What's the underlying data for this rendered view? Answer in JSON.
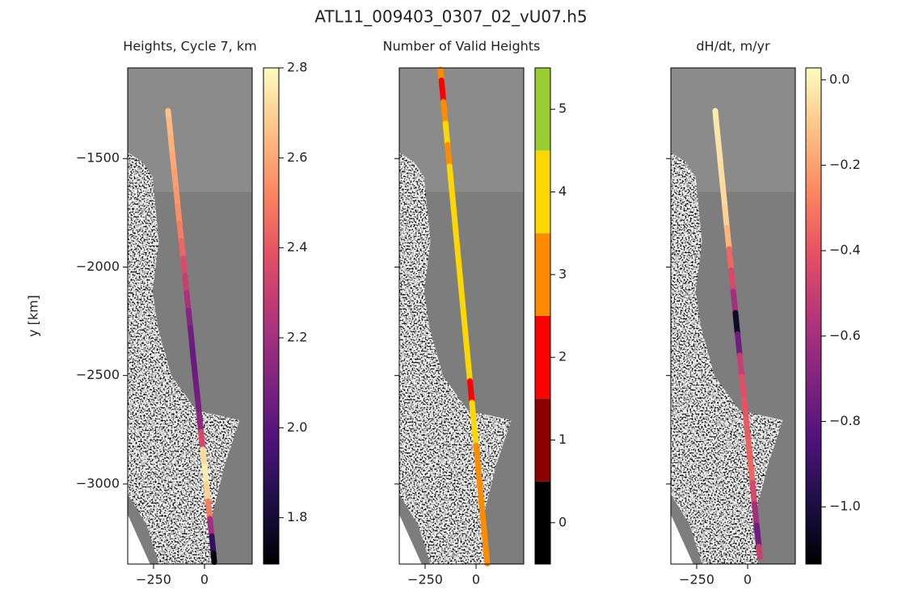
{
  "title": "ATL11_009403_0307_02_vU07.h5",
  "chart_data": [
    {
      "type": "scatter",
      "title": "Heights, Cycle 7, km",
      "ylabel": "y [km]",
      "ytick_labels": true,
      "x": [
        -179,
        -170,
        -162,
        -153,
        -144,
        -135,
        -127,
        -118,
        -109,
        -100,
        -92,
        -83,
        -74,
        -65,
        -57,
        -48,
        -39,
        -30,
        -22,
        -13,
        -4,
        5,
        13,
        22,
        31,
        40,
        48
      ],
      "y": [
        -1280,
        -1360,
        -1440,
        -1520,
        -1600,
        -1680,
        -1760,
        -1840,
        -1920,
        -2000,
        -2080,
        -2160,
        -2240,
        -2320,
        -2400,
        -2480,
        -2560,
        -2640,
        -2720,
        -2800,
        -2880,
        -2960,
        -3040,
        -3120,
        -3200,
        -3280,
        -3360
      ],
      "values": [
        2.66,
        2.64,
        2.62,
        2.6,
        2.58,
        2.56,
        2.54,
        2.5,
        2.44,
        2.36,
        2.3,
        2.22,
        2.12,
        2.06,
        2.04,
        2.05,
        2.06,
        2.08,
        2.14,
        2.34,
        2.72,
        2.76,
        2.7,
        2.5,
        2.2,
        1.9,
        1.72
      ],
      "xlim": [
        -377,
        234
      ],
      "ylim": [
        -3369,
        -1082
      ],
      "xticks": [
        {
          "value": -250,
          "label": "−250"
        },
        0
      ],
      "yticks": [
        {
          "value": -1500,
          "label": "−1500"
        },
        {
          "value": -2000,
          "label": "−2000"
        },
        {
          "value": -2500,
          "label": "−2500"
        },
        {
          "value": -3000,
          "label": "−3000"
        }
      ],
      "colorbar": {
        "type": "continuous",
        "colormap": [
          "#000004",
          "#1c1044",
          "#4f127b",
          "#812581",
          "#b5367a",
          "#e55064",
          "#fb8761",
          "#fec287",
          "#fcfdbf"
        ],
        "clim": [
          1.697,
          2.8
        ],
        "ticks": [
          1.8,
          {
            "value": 2,
            "label": "2.0"
          },
          2.2,
          2.4,
          2.6,
          2.8
        ]
      }
    },
    {
      "type": "scatter",
      "title": "Number of Valid Heights",
      "ytick_labels": false,
      "x": [
        -175,
        -165,
        -155,
        -145,
        -135,
        -125,
        -115,
        -105,
        -95,
        -85,
        -75,
        -65,
        -55,
        -45,
        -35,
        -25,
        -15,
        -5,
        5,
        15,
        25,
        35,
        45,
        55
      ],
      "y": [
        -1090,
        -1189,
        -1288,
        -1387,
        -1486,
        -1585,
        -1684,
        -1783,
        -1882,
        -1981,
        -2080,
        -2179,
        -2278,
        -2377,
        -2476,
        -2575,
        -2674,
        -2773,
        -2872,
        -2971,
        -3070,
        -3169,
        -3268,
        -3367
      ],
      "values": [
        3,
        2,
        3,
        4,
        3,
        4,
        4,
        4,
        4,
        4,
        4,
        4,
        4,
        4,
        4,
        2,
        4,
        4,
        3,
        3,
        3,
        3,
        3,
        3
      ],
      "xlim": [
        -377,
        234
      ],
      "ylim": [
        -3369,
        -1082
      ],
      "xticks": [
        {
          "value": -250,
          "label": "−250"
        },
        0
      ],
      "yticks": [
        -1500,
        -2000,
        -2500,
        -3000
      ],
      "colorbar": {
        "type": "discrete",
        "colors": [
          "#000000",
          "#8b0000",
          "#ff0000",
          "#ff8c00",
          "#ffd700",
          "#9acd32"
        ],
        "boundaries": [
          -0.5,
          0.5,
          1.5,
          2.5,
          3.5,
          4.5,
          5.5
        ],
        "ticks": [
          0,
          1,
          2,
          3,
          4,
          5
        ]
      }
    },
    {
      "type": "scatter",
      "title": "dH/dt, m/yr",
      "ytick_labels": false,
      "x": [
        -159,
        -149,
        -138,
        -128,
        -117,
        -107,
        -96,
        -86,
        -76,
        -65,
        -55,
        -44,
        -34,
        -23,
        -13,
        -2,
        8,
        19,
        29,
        39,
        50,
        60
      ],
      "y": [
        -1280,
        -1378,
        -1476,
        -1574,
        -1672,
        -1770,
        -1868,
        -1966,
        -2064,
        -2162,
        -2260,
        -2358,
        -2456,
        -2554,
        -2652,
        -2750,
        -2848,
        -2946,
        -3044,
        -3142,
        -3240,
        -3338
      ],
      "values": [
        -0.02,
        -0.03,
        -0.04,
        -0.05,
        -0.06,
        -0.08,
        -0.15,
        -0.35,
        -0.45,
        -0.6,
        -1.05,
        -0.75,
        -0.5,
        -0.42,
        -0.4,
        -0.38,
        -0.36,
        -0.35,
        -0.45,
        -0.6,
        -0.75,
        -0.5
      ],
      "xlim": [
        -377,
        234
      ],
      "ylim": [
        -3369,
        -1082
      ],
      "xticks": [
        {
          "value": -250,
          "label": "−250"
        },
        0
      ],
      "yticks": [
        -1500,
        -2000,
        -2500,
        -3000
      ],
      "colorbar": {
        "type": "continuous",
        "colormap": [
          "#000004",
          "#1c1044",
          "#4f127b",
          "#812581",
          "#b5367a",
          "#e55064",
          "#fb8761",
          "#fec287",
          "#fcfdbf"
        ],
        "clim": [
          -1.134,
          0.028
        ],
        "ticks": [
          {
            "value": 0,
            "label": "0.0"
          },
          {
            "value": -0.2,
            "label": "−0.2"
          },
          {
            "value": -0.4,
            "label": "−0.4"
          },
          {
            "value": -0.6,
            "label": "−0.6"
          },
          {
            "value": -0.8,
            "label": "−0.8"
          },
          {
            "value": -1,
            "label": "−1.0"
          }
        ]
      }
    }
  ]
}
